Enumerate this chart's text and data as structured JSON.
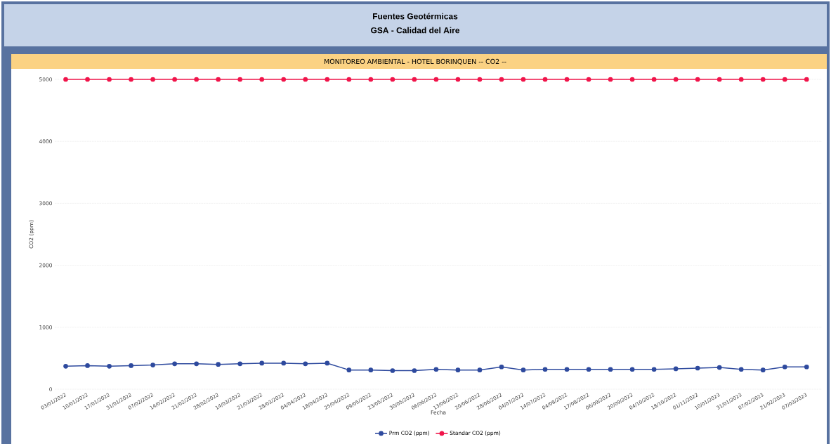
{
  "chart_data": {
    "type": "line",
    "title": "Fuentes Geotérmicas",
    "subtitle": "GSA - Calidad del Aire",
    "annotations": [
      "MONITOREO AMBIENTAL - HOTEL BORINQUEN -- CO2 --"
    ],
    "xlabel": "Fecha",
    "ylabel": "CO2 (ppm)",
    "categories": [
      "03/01/2022",
      "10/01/2022",
      "17/01/2022",
      "31/01/2022",
      "07/02/2022",
      "14/02/2022",
      "21/02/2022",
      "28/02/2022",
      "14/03/2022",
      "21/03/2022",
      "28/03/2022",
      "04/04/2022",
      "18/04/2022",
      "25/04/2022",
      "09/05/2022",
      "23/05/2022",
      "30/05/2022",
      "06/06/2022",
      "13/06/2022",
      "20/06/2022",
      "28/06/2022",
      "04/07/2022",
      "14/07/2022",
      "04/08/2022",
      "17/08/2022",
      "06/09/2022",
      "20/09/2022",
      "04/10/2022",
      "18/10/2022",
      "01/11/2022",
      "10/01/2023",
      "31/01/2023",
      "07/02/2023",
      "21/02/2023",
      "07/03/2023"
    ],
    "series": [
      {
        "name": "Prm CO2 (ppm)",
        "color": "#2e4a9e",
        "values": [
          370,
          380,
          370,
          380,
          390,
          410,
          410,
          400,
          410,
          420,
          420,
          410,
          420,
          310,
          310,
          300,
          300,
          320,
          310,
          310,
          360,
          310,
          320,
          320,
          320,
          320,
          320,
          320,
          330,
          340,
          350,
          320,
          310,
          360,
          360
        ]
      },
      {
        "name": "Standar CO2 (ppm)",
        "color": "#f0144a",
        "values": [
          5000,
          5000,
          5000,
          5000,
          5000,
          5000,
          5000,
          5000,
          5000,
          5000,
          5000,
          5000,
          5000,
          5000,
          5000,
          5000,
          5000,
          5000,
          5000,
          5000,
          5000,
          5000,
          5000,
          5000,
          5000,
          5000,
          5000,
          5000,
          5000,
          5000,
          5000,
          5000,
          5000,
          5000,
          5000
        ]
      }
    ],
    "ylim": [
      0,
      5000
    ],
    "yticks": [
      0,
      1000,
      2000,
      3000,
      4000,
      5000
    ],
    "grid": "y",
    "legend": "bottom",
    "marker": "circle",
    "line_style": "solid"
  }
}
